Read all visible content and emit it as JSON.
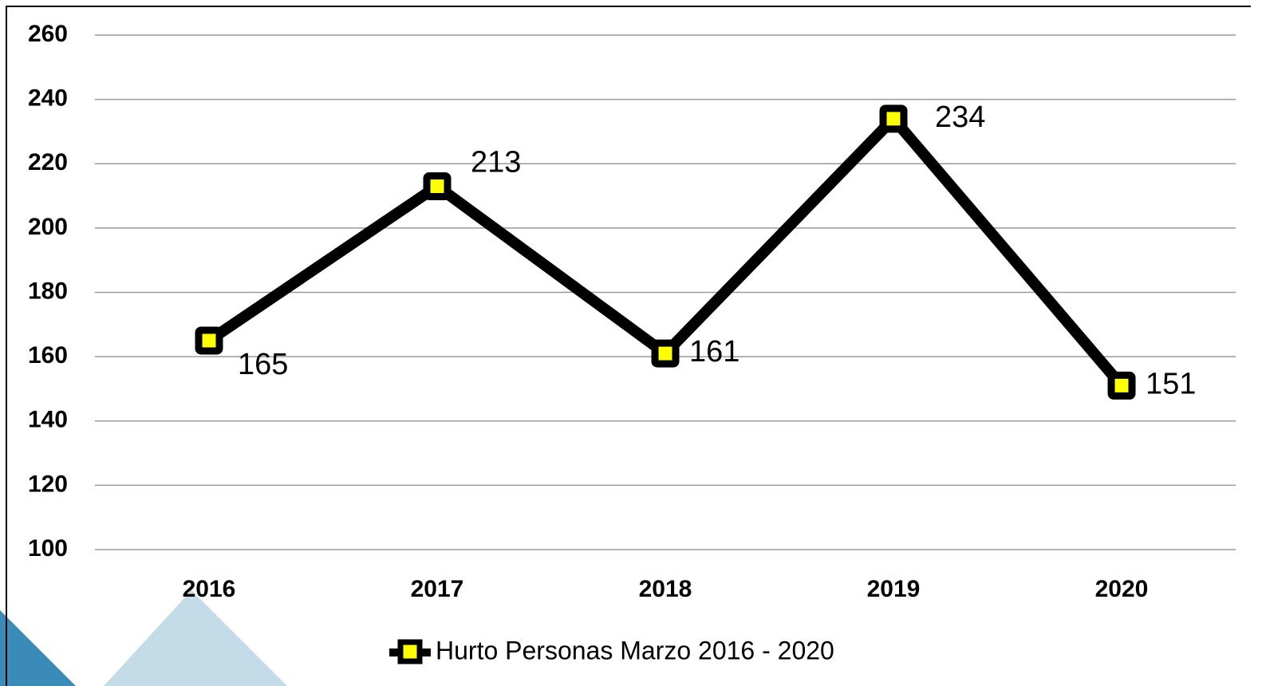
{
  "chart_data": {
    "type": "line",
    "categories": [
      "2016",
      "2017",
      "2018",
      "2019",
      "2020"
    ],
    "series": [
      {
        "name": "Hurto Personas Marzo 2016 - 2020",
        "color": "#000000",
        "marker_color": "#ffff00",
        "values": [
          165,
          213,
          161,
          234,
          151
        ]
      }
    ],
    "ylim": [
      100,
      260
    ],
    "yticks": [
      100,
      120,
      140,
      160,
      180,
      200,
      220,
      240,
      260
    ],
    "grid": true,
    "legend": "bottom"
  }
}
